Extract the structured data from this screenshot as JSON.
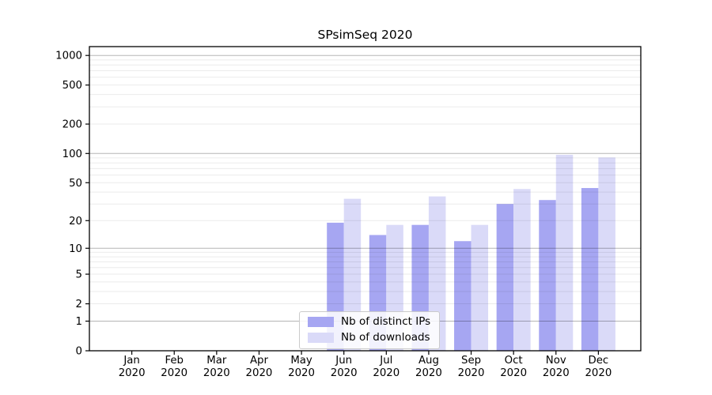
{
  "chart_data": {
    "type": "bar",
    "title": "SPsimSeq 2020",
    "categories": [
      "Jan\n2020",
      "Feb\n2020",
      "Mar\n2020",
      "Apr\n2020",
      "May\n2020",
      "Jun\n2020",
      "Jul\n2020",
      "Aug\n2020",
      "Sep\n2020",
      "Oct\n2020",
      "Nov\n2020",
      "Dec\n2020"
    ],
    "series": [
      {
        "name": "Nb of distinct IPs",
        "color": "#a6a6f2",
        "values": [
          0,
          0,
          0,
          0,
          0,
          19,
          14,
          18,
          12,
          30,
          33,
          44
        ]
      },
      {
        "name": "Nb of downloads",
        "color": "#dadaf8",
        "values": [
          0,
          0,
          0,
          0,
          0,
          34,
          18,
          36,
          18,
          43,
          97,
          91
        ]
      }
    ],
    "scale": "log1p",
    "ylim": [
      0,
      1230
    ],
    "yticks": [
      0,
      1,
      2,
      5,
      10,
      20,
      50,
      100,
      200,
      500,
      1000
    ],
    "major_gridlines": [
      1,
      10,
      100,
      1000
    ],
    "minor_gridlines": [
      2,
      3,
      4,
      5,
      6,
      7,
      8,
      9,
      20,
      30,
      40,
      50,
      60,
      70,
      80,
      90,
      200,
      300,
      400,
      500,
      600,
      700,
      800,
      900
    ],
    "grid": true,
    "legend_position": "inside-bottom-center",
    "xlabel": "",
    "ylabel": ""
  }
}
